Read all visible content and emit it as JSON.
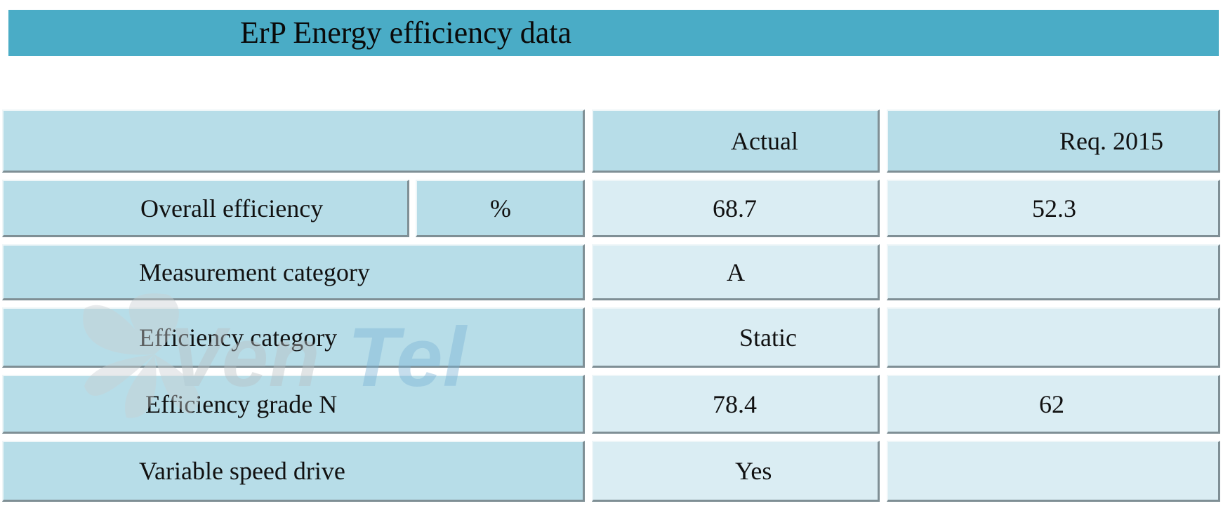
{
  "title": "ErP Energy efficiency data",
  "header": {
    "col_actual": "Actual",
    "col_req": "Req. 2015"
  },
  "rows": [
    {
      "label": "Overall efficiency",
      "unit": "%",
      "actual": "68.7",
      "req": "52.3"
    },
    {
      "label": "Measurement category",
      "actual": "A",
      "req": ""
    },
    {
      "label": "Efficiency category",
      "actual": "Static",
      "req": ""
    },
    {
      "label": "Efficiency grade N",
      "actual": "78.4",
      "req": "62"
    },
    {
      "label": "Variable speed drive",
      "actual": "Yes",
      "req": ""
    }
  ],
  "watermark": {
    "text": "VenTel",
    "icon": "fan-logo-icon"
  },
  "colors": {
    "title_bar": "#4aacc6",
    "dark_cell": "#b7dde8",
    "light_cell": "#daedf3"
  }
}
